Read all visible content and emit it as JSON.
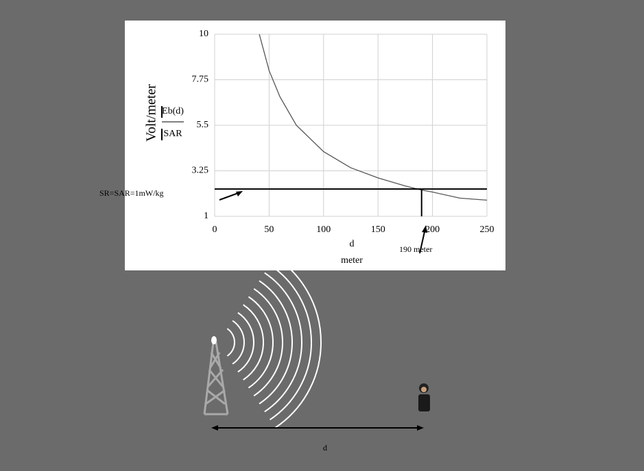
{
  "chart_data": {
    "type": "line",
    "y_title": "Volt/meter",
    "x_title": [
      "d",
      "meter"
    ],
    "series": [
      {
        "name": "Eb(d)",
        "color": "#555555",
        "x": [
          41,
          50,
          60,
          75,
          100,
          125,
          150,
          175,
          190,
          200,
          225,
          250
        ],
        "values": [
          10,
          8.2,
          6.9,
          5.5,
          4.2,
          3.4,
          2.9,
          2.5,
          2.3,
          2.2,
          1.9,
          1.8
        ]
      },
      {
        "name": "SAR",
        "color": "#000000",
        "x": [
          0,
          250
        ],
        "values": [
          2.35,
          2.35
        ]
      }
    ],
    "threshold_label": "SR=SAR=1mW/kg",
    "marker": {
      "x": 190,
      "label": "190 meter"
    },
    "xlim": [
      0,
      250
    ],
    "xticks": [
      0,
      50,
      100,
      150,
      200,
      250
    ],
    "ylim": [
      1,
      10
    ],
    "yticks": [
      1,
      3.25,
      5.5,
      7.75,
      10
    ],
    "grid": true
  },
  "illustration": {
    "distance_label": "d"
  }
}
